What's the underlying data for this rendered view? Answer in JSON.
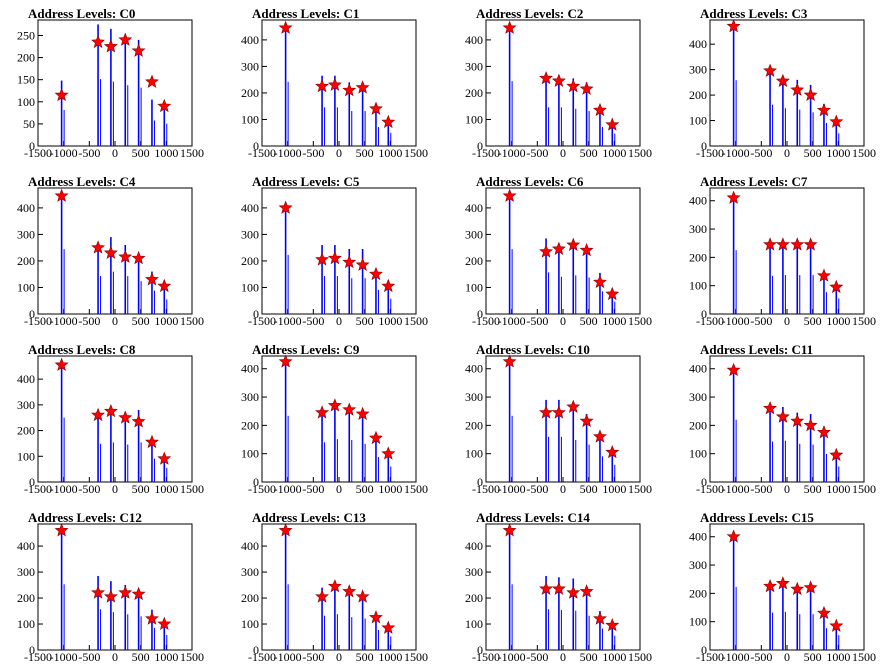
{
  "figure": {
    "background": "#ffffff",
    "plot_frame_color": "#000000",
    "histogram_color": "#0000ff",
    "marker_color": "#ff0000",
    "marker_edge": "#8b0000"
  },
  "chart_data": [
    {
      "type": "bar",
      "title": "Address Levels: C0",
      "xlim": [
        -1500,
        1500
      ],
      "ylim": [
        0,
        285
      ],
      "xticks": [
        "-1500",
        "-1000",
        "-500",
        "0",
        "500",
        "1000",
        "1500"
      ],
      "yticks": [
        "0",
        "50",
        "100",
        "150",
        "200",
        "250"
      ],
      "series": [
        {
          "x": [
            -1040,
            -330,
            -80,
            200,
            460,
            720,
            960
          ],
          "y": [
            148,
            275,
            265,
            250,
            240,
            105,
            92
          ]
        }
      ],
      "peaks": {
        "x": [
          -1040,
          -330,
          -80,
          200,
          460,
          720,
          960
        ],
        "y": [
          115,
          235,
          225,
          240,
          215,
          145,
          90
        ]
      }
    },
    {
      "type": "bar",
      "title": "Address Levels: C1",
      "xlim": [
        -1500,
        1500
      ],
      "ylim": [
        0,
        475
      ],
      "xticks": [
        "-1500",
        "-1000",
        "-500",
        "0",
        "500",
        "1000",
        "1500"
      ],
      "yticks": [
        "0",
        "100",
        "200",
        "300",
        "400"
      ],
      "series": [
        {
          "x": [
            -1040,
            -330,
            -80,
            200,
            460,
            720,
            960
          ],
          "y": [
            440,
            265,
            265,
            240,
            240,
            130,
            90
          ]
        }
      ],
      "peaks": {
        "x": [
          -1040,
          -330,
          -80,
          200,
          460,
          720,
          960
        ],
        "y": [
          445,
          225,
          230,
          210,
          220,
          140,
          90
        ]
      }
    },
    {
      "type": "bar",
      "title": "Address Levels: C2",
      "xlim": [
        -1500,
        1500
      ],
      "ylim": [
        0,
        475
      ],
      "xticks": [
        "-1500",
        "-1000",
        "-500",
        "0",
        "500",
        "1000",
        "1500"
      ],
      "yticks": [
        "0",
        "100",
        "200",
        "300",
        "400"
      ],
      "series": [
        {
          "x": [
            -1040,
            -330,
            -80,
            200,
            460,
            720,
            960
          ],
          "y": [
            445,
            265,
            265,
            255,
            240,
            130,
            85
          ]
        }
      ],
      "peaks": {
        "x": [
          -1040,
          -330,
          -80,
          200,
          460,
          720,
          960
        ],
        "y": [
          445,
          255,
          245,
          225,
          215,
          135,
          80
        ]
      }
    },
    {
      "type": "bar",
      "title": "Address Levels: C3",
      "xlim": [
        -1500,
        1500
      ],
      "ylim": [
        0,
        495
      ],
      "xticks": [
        "-1500",
        "-1000",
        "-500",
        "0",
        "500",
        "1000",
        "1500"
      ],
      "yticks": [
        "0",
        "100",
        "200",
        "300",
        "400"
      ],
      "series": [
        {
          "x": [
            -1040,
            -330,
            -80,
            200,
            460,
            720,
            960
          ],
          "y": [
            470,
            295,
            270,
            260,
            240,
            165,
            90
          ]
        }
      ],
      "peaks": {
        "x": [
          -1040,
          -330,
          -80,
          200,
          460,
          720,
          960
        ],
        "y": [
          470,
          295,
          255,
          220,
          200,
          140,
          95
        ]
      }
    },
    {
      "type": "bar",
      "title": "Address Levels: C4",
      "xlim": [
        -1500,
        1500
      ],
      "ylim": [
        0,
        475
      ],
      "xticks": [
        "-1500",
        "-1000",
        "-500",
        "0",
        "500",
        "1000",
        "1500"
      ],
      "yticks": [
        "0",
        "100",
        "200",
        "300",
        "400"
      ],
      "series": [
        {
          "x": [
            -1040,
            -330,
            -80,
            200,
            460,
            720,
            960
          ],
          "y": [
            445,
            260,
            290,
            260,
            225,
            160,
            100
          ]
        }
      ],
      "peaks": {
        "x": [
          -1040,
          -330,
          -80,
          200,
          460,
          720,
          960
        ],
        "y": [
          445,
          250,
          230,
          215,
          210,
          130,
          105
        ]
      }
    },
    {
      "type": "bar",
      "title": "Address Levels: C5",
      "xlim": [
        -1500,
        1500
      ],
      "ylim": [
        0,
        475
      ],
      "xticks": [
        "-1500",
        "-1000",
        "-500",
        "0",
        "500",
        "1000",
        "1500"
      ],
      "yticks": [
        "0",
        "100",
        "200",
        "300",
        "400"
      ],
      "series": [
        {
          "x": [
            -1040,
            -330,
            -80,
            200,
            460,
            720,
            960
          ],
          "y": [
            405,
            260,
            260,
            245,
            245,
            165,
            105
          ]
        }
      ],
      "peaks": {
        "x": [
          -1040,
          -330,
          -80,
          200,
          460,
          720,
          960
        ],
        "y": [
          400,
          205,
          210,
          195,
          185,
          150,
          105
        ]
      }
    },
    {
      "type": "bar",
      "title": "Address Levels: C6",
      "xlim": [
        -1500,
        1500
      ],
      "ylim": [
        0,
        475
      ],
      "xticks": [
        "-1500",
        "-1000",
        "-500",
        "0",
        "500",
        "1000",
        "1500"
      ],
      "yticks": [
        "0",
        "100",
        "200",
        "300",
        "400"
      ],
      "series": [
        {
          "x": [
            -1040,
            -330,
            -80,
            200,
            460,
            720,
            960
          ],
          "y": [
            445,
            285,
            255,
            265,
            250,
            155,
            85
          ]
        }
      ],
      "peaks": {
        "x": [
          -1040,
          -330,
          -80,
          200,
          460,
          720,
          960
        ],
        "y": [
          445,
          235,
          245,
          260,
          240,
          120,
          75
        ]
      }
    },
    {
      "type": "bar",
      "title": "Address Levels: C7",
      "xlim": [
        -1500,
        1500
      ],
      "ylim": [
        0,
        445
      ],
      "xticks": [
        "-1500",
        "-1000",
        "-500",
        "0",
        "500",
        "1000",
        "1500"
      ],
      "yticks": [
        "0",
        "100",
        "200",
        "300",
        "400"
      ],
      "series": [
        {
          "x": [
            -1040,
            -330,
            -80,
            200,
            460,
            720,
            960
          ],
          "y": [
            410,
            245,
            250,
            250,
            250,
            140,
            100
          ]
        }
      ],
      "peaks": {
        "x": [
          -1040,
          -330,
          -80,
          200,
          460,
          720,
          960
        ],
        "y": [
          410,
          245,
          245,
          245,
          245,
          135,
          95
        ]
      }
    },
    {
      "type": "bar",
      "title": "Address Levels: C8",
      "xlim": [
        -1500,
        1500
      ],
      "ylim": [
        0,
        490
      ],
      "xticks": [
        "-1500",
        "-1000",
        "-500",
        "0",
        "500",
        "1000",
        "1500"
      ],
      "yticks": [
        "0",
        "100",
        "200",
        "300",
        "400"
      ],
      "series": [
        {
          "x": [
            -1040,
            -330,
            -80,
            200,
            460,
            720,
            960
          ],
          "y": [
            455,
            270,
            280,
            265,
            280,
            165,
            100
          ]
        }
      ],
      "peaks": {
        "x": [
          -1040,
          -330,
          -80,
          200,
          460,
          720,
          960
        ],
        "y": [
          455,
          260,
          275,
          250,
          235,
          155,
          90
        ]
      }
    },
    {
      "type": "bar",
      "title": "Address Levels: C9",
      "xlim": [
        -1500,
        1500
      ],
      "ylim": [
        0,
        445
      ],
      "xticks": [
        "-1500",
        "-1000",
        "-500",
        "0",
        "500",
        "1000",
        "1500"
      ],
      "yticks": [
        "0",
        "100",
        "200",
        "300",
        "400"
      ],
      "series": [
        {
          "x": [
            -1040,
            -330,
            -80,
            200,
            460,
            720,
            960
          ],
          "y": [
            425,
            255,
            275,
            270,
            245,
            160,
            100
          ]
        }
      ],
      "peaks": {
        "x": [
          -1040,
          -330,
          -80,
          200,
          460,
          720,
          960
        ],
        "y": [
          425,
          245,
          270,
          255,
          240,
          155,
          100
        ]
      }
    },
    {
      "type": "bar",
      "title": "Address Levels: C10",
      "xlim": [
        -1500,
        1500
      ],
      "ylim": [
        0,
        445
      ],
      "xticks": [
        "-1500",
        "-1000",
        "-500",
        "0",
        "500",
        "1000",
        "1500"
      ],
      "yticks": [
        "0",
        "100",
        "200",
        "300",
        "400"
      ],
      "series": [
        {
          "x": [
            -1040,
            -330,
            -80,
            200,
            460,
            720,
            960
          ],
          "y": [
            425,
            290,
            290,
            270,
            240,
            165,
            110
          ]
        }
      ],
      "peaks": {
        "x": [
          -1040,
          -330,
          -80,
          200,
          460,
          720,
          960
        ],
        "y": [
          425,
          245,
          245,
          265,
          215,
          160,
          105
        ]
      }
    },
    {
      "type": "bar",
      "title": "Address Levels: C11",
      "xlim": [
        -1500,
        1500
      ],
      "ylim": [
        0,
        445
      ],
      "xticks": [
        "-1500",
        "-1000",
        "-500",
        "0",
        "500",
        "1000",
        "1500"
      ],
      "yticks": [
        "0",
        "100",
        "200",
        "300",
        "400"
      ],
      "series": [
        {
          "x": [
            -1040,
            -330,
            -80,
            200,
            460,
            720,
            960
          ],
          "y": [
            400,
            260,
            265,
            245,
            240,
            180,
            100
          ]
        }
      ],
      "peaks": {
        "x": [
          -1040,
          -330,
          -80,
          200,
          460,
          720,
          960
        ],
        "y": [
          395,
          260,
          230,
          215,
          200,
          175,
          95
        ]
      }
    },
    {
      "type": "bar",
      "title": "Address Levels: C12",
      "xlim": [
        -1500,
        1500
      ],
      "ylim": [
        0,
        485
      ],
      "xticks": [
        "-1500",
        "-1000",
        "-500",
        "0",
        "500",
        "1000",
        "1500"
      ],
      "yticks": [
        "0",
        "100",
        "200",
        "300",
        "400"
      ],
      "series": [
        {
          "x": [
            -1040,
            -330,
            -80,
            200,
            460,
            720,
            960
          ],
          "y": [
            460,
            285,
            265,
            250,
            235,
            155,
            105
          ]
        }
      ],
      "peaks": {
        "x": [
          -1040,
          -330,
          -80,
          200,
          460,
          720,
          960
        ],
        "y": [
          460,
          220,
          205,
          220,
          215,
          120,
          100
        ]
      }
    },
    {
      "type": "bar",
      "title": "Address Levels: C13",
      "xlim": [
        -1500,
        1500
      ],
      "ylim": [
        0,
        485
      ],
      "xticks": [
        "-1500",
        "-1000",
        "-500",
        "0",
        "500",
        "1000",
        "1500"
      ],
      "yticks": [
        "0",
        "100",
        "200",
        "300",
        "400"
      ],
      "series": [
        {
          "x": [
            -1040,
            -330,
            -80,
            200,
            460,
            720,
            960
          ],
          "y": [
            460,
            240,
            250,
            230,
            220,
            140,
            95
          ]
        }
      ],
      "peaks": {
        "x": [
          -1040,
          -330,
          -80,
          200,
          460,
          720,
          960
        ],
        "y": [
          460,
          205,
          245,
          225,
          205,
          125,
          85
        ]
      }
    },
    {
      "type": "bar",
      "title": "Address Levels: C14",
      "xlim": [
        -1500,
        1500
      ],
      "ylim": [
        0,
        485
      ],
      "xticks": [
        "-1500",
        "-1000",
        "-500",
        "0",
        "500",
        "1000",
        "1500"
      ],
      "yticks": [
        "0",
        "100",
        "200",
        "300",
        "400"
      ],
      "series": [
        {
          "x": [
            -1040,
            -330,
            -80,
            200,
            460,
            720,
            960
          ],
          "y": [
            460,
            285,
            280,
            275,
            240,
            150,
            100
          ]
        }
      ],
      "peaks": {
        "x": [
          -1040,
          -330,
          -80,
          200,
          460,
          720,
          960
        ],
        "y": [
          460,
          235,
          235,
          220,
          225,
          120,
          95
        ]
      }
    },
    {
      "type": "bar",
      "title": "Address Levels: C15",
      "xlim": [
        -1500,
        1500
      ],
      "ylim": [
        0,
        445
      ],
      "xticks": [
        "-1500",
        "-1000",
        "-500",
        "0",
        "500",
        "1000",
        "1500"
      ],
      "yticks": [
        "0",
        "100",
        "200",
        "300",
        "400"
      ],
      "series": [
        {
          "x": [
            -1040,
            -330,
            -80,
            200,
            460,
            720,
            960
          ],
          "y": [
            405,
            240,
            245,
            230,
            230,
            140,
            95
          ]
        }
      ],
      "peaks": {
        "x": [
          -1040,
          -330,
          -80,
          200,
          460,
          720,
          960
        ],
        "y": [
          400,
          225,
          235,
          215,
          220,
          130,
          85
        ]
      }
    }
  ]
}
